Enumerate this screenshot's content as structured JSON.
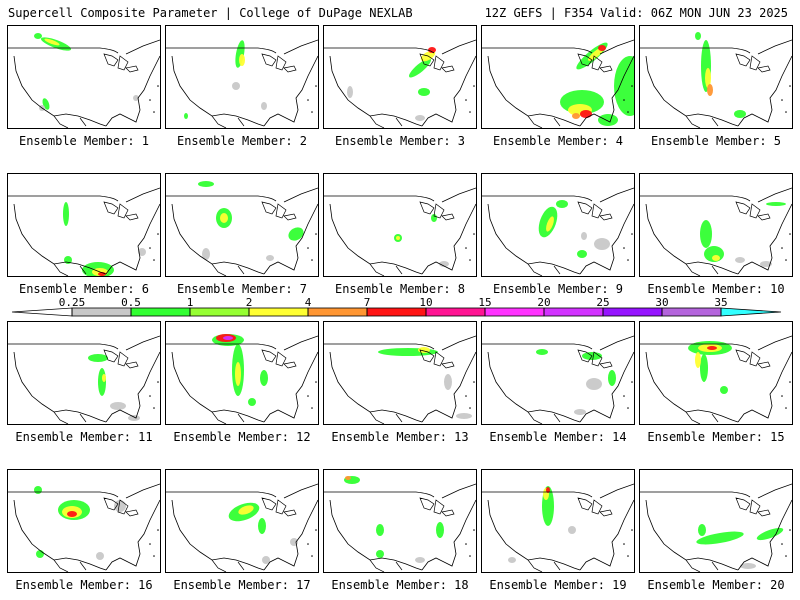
{
  "header": {
    "left": "Supercell Composite Parameter | College of DuPage NEXLAB",
    "right": "12Z GEFS | F354 Valid: 06Z MON JUN 23 2025"
  },
  "panel_label_prefix": "Ensemble Member:",
  "members": [
    "1",
    "2",
    "3",
    "4",
    "5",
    "6",
    "7",
    "8",
    "9",
    "10",
    "11",
    "12",
    "13",
    "14",
    "15",
    "16",
    "17",
    "18",
    "19",
    "20"
  ],
  "colorbar": {
    "ticks": [
      "0.25",
      "0.5",
      "1",
      "2",
      "4",
      "7",
      "10",
      "15",
      "20",
      "25",
      "30",
      "35"
    ],
    "colors": [
      "#c8c8c8",
      "#32ff32",
      "#96ff32",
      "#ffff32",
      "#ff9632",
      "#ff1414",
      "#ff1493",
      "#ff32ff",
      "#d232ff",
      "#9614ff",
      "#b464dc",
      "#32ffff"
    ]
  }
}
